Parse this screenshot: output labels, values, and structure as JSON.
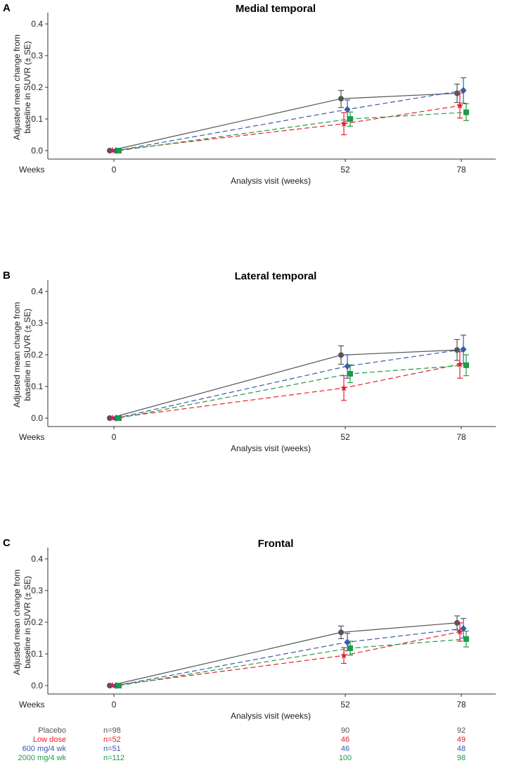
{
  "chart_data": [
    {
      "type": "line",
      "panel_letter": "A",
      "title": "Medial temporal",
      "xlabel": "Analysis visit (weeks)",
      "ylabel_lines": [
        "Adjusted mean change from",
        "baseline in SUVR (± SE)"
      ],
      "x_row_label": "Weeks",
      "x": [
        0,
        52,
        78
      ],
      "ylim": [
        0,
        0.4
      ],
      "yticks": [
        "0.0",
        "0.1",
        "0.2",
        "0.3",
        "0.4"
      ],
      "series": [
        {
          "name": "Placebo",
          "values": [
            0,
            0.164,
            0.181
          ],
          "se_low": [
            0,
            0.136,
            0.152
          ],
          "se_high": [
            0,
            0.19,
            0.21
          ]
        },
        {
          "name": "Low dose",
          "values": [
            0,
            0.085,
            0.142
          ],
          "se_low": [
            0,
            0.05,
            0.103
          ],
          "se_high": [
            0,
            0.12,
            0.182
          ]
        },
        {
          "name": "600 mg/4 wk",
          "values": [
            0,
            0.13,
            0.19
          ],
          "se_low": [
            0,
            0.093,
            0.15
          ],
          "se_high": [
            0,
            0.16,
            0.23
          ]
        },
        {
          "name": "2000 mg/4 wk",
          "values": [
            0,
            0.1,
            0.121
          ],
          "se_low": [
            0,
            0.077,
            0.095
          ],
          "se_high": [
            0,
            0.122,
            0.148
          ]
        }
      ]
    },
    {
      "type": "line",
      "panel_letter": "B",
      "title": "Lateral temporal",
      "xlabel": "Analysis visit (weeks)",
      "ylabel_lines": [
        "Adjusted mean change from",
        "baseline in SUVR (± SE)"
      ],
      "x_row_label": "Weeks",
      "x": [
        0,
        52,
        78
      ],
      "ylim": [
        0,
        0.4
      ],
      "yticks": [
        "0.0",
        "0.1",
        "0.2",
        "0.3",
        "0.4"
      ],
      "series": [
        {
          "name": "Placebo",
          "values": [
            0,
            0.199,
            0.215
          ],
          "se_low": [
            0,
            0.17,
            0.182
          ],
          "se_high": [
            0,
            0.228,
            0.248
          ]
        },
        {
          "name": "Low dose",
          "values": [
            0,
            0.095,
            0.17
          ],
          "se_low": [
            0,
            0.056,
            0.126
          ],
          "se_high": [
            0,
            0.134,
            0.21
          ]
        },
        {
          "name": "600 mg/4 wk",
          "values": [
            0,
            0.164,
            0.217
          ],
          "se_low": [
            0,
            0.126,
            0.172
          ],
          "se_high": [
            0,
            0.2,
            0.262
          ]
        },
        {
          "name": "2000 mg/4 wk",
          "values": [
            0,
            0.14,
            0.167
          ],
          "se_low": [
            0,
            0.112,
            0.134
          ],
          "se_high": [
            0,
            0.168,
            0.2
          ]
        }
      ]
    },
    {
      "type": "line",
      "panel_letter": "C",
      "title": "Frontal",
      "xlabel": "Analysis visit (weeks)",
      "ylabel_lines": [
        "Adjusted mean change from",
        "baseline in SUVR (± SE)"
      ],
      "x_row_label": "Weeks",
      "x": [
        0,
        52,
        78
      ],
      "ylim": [
        0,
        0.4
      ],
      "yticks": [
        "0.0",
        "0.1",
        "0.2",
        "0.3",
        "0.4"
      ],
      "series": [
        {
          "name": "Placebo",
          "values": [
            0,
            0.168,
            0.198
          ],
          "se_low": [
            0,
            0.148,
            0.176
          ],
          "se_high": [
            0,
            0.188,
            0.22
          ]
        },
        {
          "name": "Low dose",
          "values": [
            0,
            0.095,
            0.17
          ],
          "se_low": [
            0,
            0.07,
            0.14
          ],
          "se_high": [
            0,
            0.12,
            0.198
          ]
        },
        {
          "name": "600 mg/4 wk",
          "values": [
            0,
            0.137,
            0.18
          ],
          "se_low": [
            0,
            0.11,
            0.15
          ],
          "se_high": [
            0,
            0.165,
            0.212
          ]
        },
        {
          "name": "2000 mg/4 wk",
          "values": [
            0,
            0.118,
            0.147
          ],
          "se_low": [
            0,
            0.096,
            0.122
          ],
          "se_high": [
            0,
            0.14,
            0.172
          ]
        }
      ]
    }
  ],
  "series_styles": [
    {
      "color": "#555555",
      "marker": "circle",
      "dash": false
    },
    {
      "color": "#e8202a",
      "marker": "star",
      "dash": true
    },
    {
      "color": "#3a5aa8",
      "marker": "diamond",
      "dash": true
    },
    {
      "color": "#1f9a48",
      "marker": "square",
      "dash": true
    }
  ],
  "n_table": [
    {
      "label": "Placebo",
      "n0": "n=98",
      "n52": "90",
      "n78": "92"
    },
    {
      "label": "Low dose",
      "n0": "n=52",
      "n52": "46",
      "n78": "49"
    },
    {
      "label": "600 mg/4 wk",
      "n0": "n=51",
      "n52": "46",
      "n78": "48"
    },
    {
      "label": "2000 mg/4 wk",
      "n0": "n=112",
      "n52": "100",
      "n78": "98"
    }
  ]
}
